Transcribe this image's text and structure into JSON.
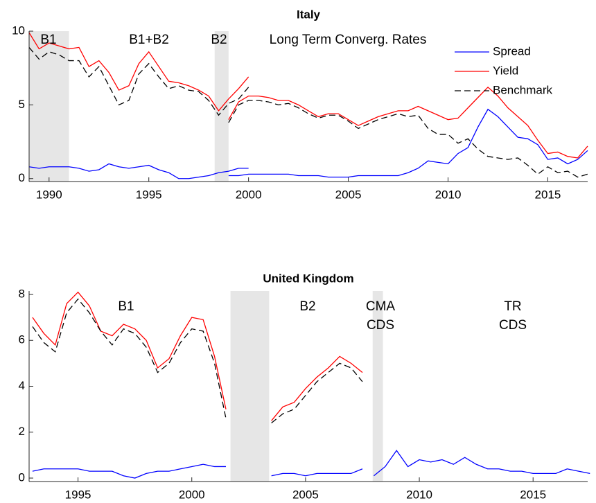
{
  "chart_data": [
    {
      "type": "line",
      "title": "Italy",
      "x": [
        1989,
        1989.5,
        1990,
        1990.5,
        1991,
        1991.5,
        1992,
        1992.5,
        1993,
        1993.5,
        1994,
        1994.5,
        1995,
        1995.5,
        1996,
        1996.5,
        1997,
        1997.5,
        1998,
        1998.5,
        1999,
        1999.5,
        2000,
        null,
        1999,
        1999.5,
        2000,
        2000.5,
        2001,
        2001.5,
        2002,
        2002.5,
        2003,
        2003.5,
        2004,
        2004.5,
        2005,
        2005.5,
        2006,
        2006.5,
        2007,
        2007.5,
        2008,
        2008.5,
        2009,
        2009.5,
        2010,
        2010.5,
        2011,
        2011.5,
        2012,
        2012.5,
        2013,
        2013.5,
        2014,
        2014.5,
        2015,
        2015.5,
        2016,
        2016.5,
        2017
      ],
      "series": [
        {
          "name": "Spread",
          "color": "#0000ff",
          "dashed": false,
          "values": [
            0.8,
            0.7,
            0.8,
            0.8,
            0.8,
            0.7,
            0.5,
            0.6,
            1.0,
            0.8,
            0.7,
            0.8,
            0.9,
            0.6,
            0.4,
            0.0,
            0.0,
            0.1,
            0.2,
            0.4,
            0.5,
            0.7,
            0.7,
            null,
            0.2,
            0.2,
            0.3,
            0.3,
            0.3,
            0.3,
            0.3,
            0.2,
            0.2,
            0.2,
            0.1,
            0.1,
            0.1,
            0.2,
            0.2,
            0.2,
            0.2,
            0.2,
            0.4,
            0.7,
            1.2,
            1.1,
            1.0,
            1.7,
            2.1,
            3.5,
            4.7,
            4.2,
            3.5,
            2.8,
            2.7,
            2.3,
            1.3,
            1.4,
            1.0,
            1.3,
            1.9
          ]
        },
        {
          "name": "Yield",
          "color": "#ff0000",
          "dashed": false,
          "values": [
            9.9,
            8.8,
            9.2,
            9.0,
            8.8,
            8.9,
            7.6,
            8.0,
            7.2,
            6.0,
            6.3,
            7.8,
            8.6,
            7.6,
            6.6,
            6.5,
            6.3,
            6.0,
            5.6,
            4.6,
            5.4,
            6.1,
            6.9,
            null,
            4.0,
            5.2,
            5.6,
            5.6,
            5.5,
            5.3,
            5.3,
            5.0,
            4.6,
            4.2,
            4.4,
            4.4,
            4.0,
            3.6,
            3.9,
            4.2,
            4.4,
            4.6,
            4.6,
            4.9,
            4.6,
            4.3,
            4.0,
            4.1,
            4.8,
            5.5,
            6.2,
            5.6,
            4.8,
            4.2,
            3.6,
            2.6,
            1.7,
            1.8,
            1.5,
            1.4,
            2.2
          ]
        },
        {
          "name": "Benchmark",
          "color": "#000000",
          "dashed": true,
          "values": [
            8.9,
            8.1,
            8.6,
            8.4,
            8.0,
            8.0,
            6.9,
            7.6,
            6.3,
            5.0,
            5.3,
            7.1,
            7.8,
            6.9,
            6.1,
            6.3,
            6.0,
            5.9,
            5.3,
            4.3,
            5.1,
            5.4,
            6.2,
            null,
            3.8,
            5.0,
            5.3,
            5.3,
            5.2,
            5.0,
            5.1,
            4.8,
            4.4,
            4.1,
            4.3,
            4.3,
            3.9,
            3.4,
            3.7,
            4.0,
            4.2,
            4.4,
            4.2,
            4.3,
            3.4,
            3.0,
            3.0,
            2.4,
            2.7,
            2.0,
            1.5,
            1.4,
            1.3,
            1.4,
            0.9,
            0.3,
            0.8,
            0.4,
            0.5,
            0.1,
            0.3
          ]
        }
      ],
      "xlim": [
        1989,
        2017
      ],
      "ylim": [
        -0.2,
        10
      ],
      "xticks": [
        1990,
        1995,
        2000,
        2005,
        2010,
        2015
      ],
      "yticks": [
        0,
        5,
        10
      ],
      "shaded_periods": [
        [
          1989,
          1991
        ],
        [
          1998.3,
          1999
        ]
      ],
      "annotations": [
        [
          "B1"
        ],
        [
          "B1+B2"
        ],
        [
          "B2"
        ],
        [
          "Long Term Converg. Rates"
        ]
      ],
      "legend": "upper right"
    },
    {
      "type": "line",
      "title": "United Kingdom",
      "x": [
        1993,
        1993.5,
        1994,
        1994.5,
        1995,
        1995.5,
        1996,
        1996.5,
        1997,
        1997.5,
        1998,
        1998.5,
        1999,
        1999.5,
        2000,
        2000.5,
        2001,
        2001.5,
        2002.5,
        2003.5,
        2004,
        2004.5,
        2005,
        2005.5,
        2006,
        2006.5,
        2007,
        2007.5,
        2007.75,
        2008,
        2008.5,
        2009,
        2009.5,
        2010,
        2010.5,
        2011,
        2011.5,
        2012,
        2012.5,
        2013,
        2013.5,
        2014,
        2014.5,
        2015,
        2015.5,
        2016,
        2016.5,
        2017,
        2017.5
      ],
      "series": [
        {
          "color": "#0000ff",
          "dashed": false,
          "values": [
            0.3,
            0.4,
            0.4,
            0.4,
            0.4,
            0.3,
            0.3,
            0.3,
            0.1,
            0.0,
            0.2,
            0.3,
            0.3,
            0.4,
            0.5,
            0.6,
            0.5,
            0.5,
            null,
            0.1,
            0.2,
            0.2,
            0.1,
            0.2,
            0.2,
            0.2,
            0.2,
            0.4,
            null,
            0.1,
            0.5,
            1.2,
            0.5,
            0.8,
            0.7,
            0.8,
            0.6,
            0.9,
            0.6,
            0.4,
            0.4,
            0.3,
            0.3,
            0.2,
            0.2,
            0.2,
            0.4,
            0.3,
            0.2
          ]
        },
        {
          "color": "#ff0000",
          "dashed": false,
          "values": [
            7.0,
            6.3,
            5.8,
            7.6,
            8.1,
            7.5,
            6.4,
            6.2,
            6.7,
            6.5,
            6.0,
            4.8,
            5.2,
            6.2,
            7.0,
            6.9,
            5.3,
            3.0,
            null,
            2.5,
            3.1,
            3.3,
            3.9,
            4.4,
            4.8,
            5.3,
            5.0,
            4.6,
            null,
            null,
            null,
            null,
            null,
            null,
            null,
            null,
            null,
            null,
            null,
            null,
            null,
            null,
            null,
            null,
            null,
            null,
            null,
            null,
            null
          ]
        },
        {
          "color": "#000000",
          "dashed": true,
          "values": [
            6.6,
            5.9,
            5.5,
            7.2,
            7.8,
            7.2,
            6.4,
            5.8,
            6.5,
            6.3,
            5.7,
            4.6,
            5.0,
            5.9,
            6.5,
            6.4,
            5.0,
            2.6,
            null,
            2.4,
            2.8,
            3.0,
            3.6,
            4.2,
            4.6,
            5.0,
            4.8,
            4.2,
            null,
            null,
            null,
            null,
            null,
            null,
            null,
            null,
            null,
            null,
            null,
            null,
            null,
            null,
            null,
            null,
            null,
            null,
            null,
            null,
            null
          ]
        }
      ],
      "xlim": [
        1992.85,
        2017.4
      ],
      "ylim": [
        -0.15,
        8.15
      ],
      "xticks": [
        1995,
        2000,
        2005,
        2010,
        2015
      ],
      "yticks": [
        0,
        2,
        4,
        6,
        8
      ],
      "shaded_periods": [
        [
          2001.7,
          2003.4
        ],
        [
          2007.95,
          2008.4
        ]
      ],
      "annotations": [
        [
          "B1"
        ],
        [
          "B2"
        ],
        [
          "CMA",
          "CDS"
        ],
        [
          "TR",
          "CDS"
        ]
      ]
    }
  ]
}
